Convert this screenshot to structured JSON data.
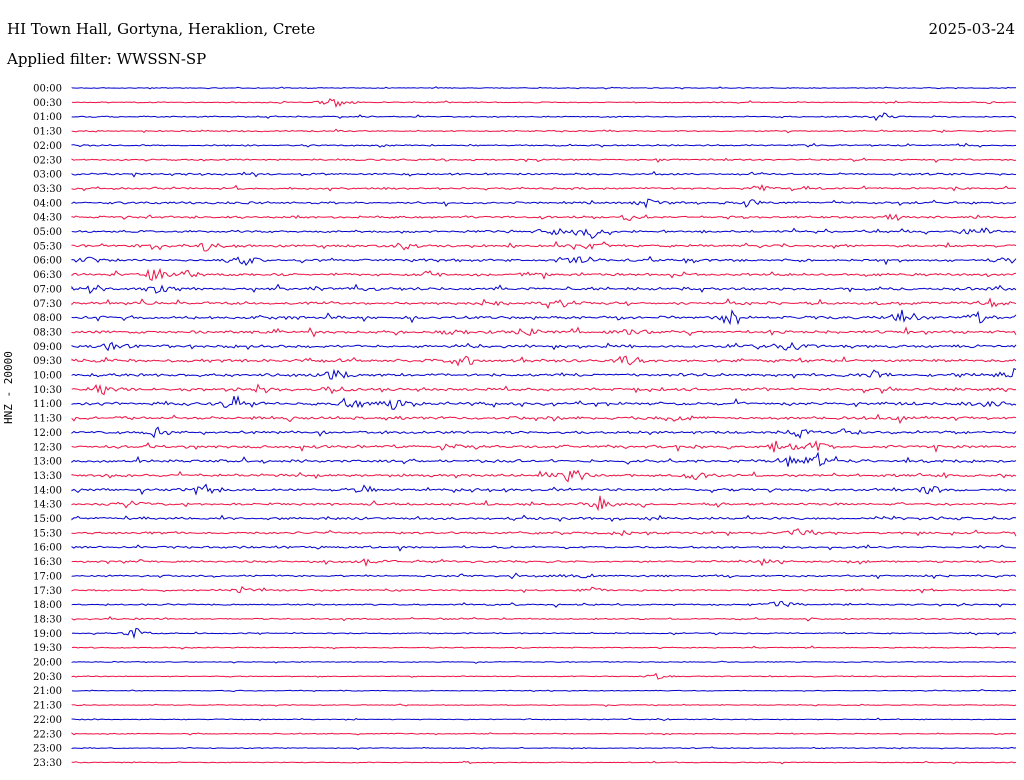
{
  "header": {
    "station": "HI Town Hall, Gortyna, Heraklion, Crete",
    "date": "2025-03-24",
    "filter": "Applied filter: WWSSN-SP",
    "channel": "HNZ - 20000"
  },
  "colors": {
    "trace_a": "#0000cc",
    "trace_b": "#ee1144"
  },
  "chart_data": {
    "type": "line",
    "title": "HI Town Hall, Gortyna, Heraklion, Crete",
    "ylabel": "HNZ - 20000",
    "series": [
      {
        "name": "00:00",
        "bursts": []
      },
      {
        "name": "00:30",
        "bursts": [
          [
            0.28,
            7
          ]
        ]
      },
      {
        "name": "01:00",
        "bursts": [
          [
            0.86,
            4
          ]
        ]
      },
      {
        "name": "01:30",
        "bursts": []
      },
      {
        "name": "02:00",
        "bursts": []
      },
      {
        "name": "02:30",
        "bursts": []
      },
      {
        "name": "03:00",
        "bursts": []
      },
      {
        "name": "03:30",
        "bursts": [
          [
            0.73,
            4
          ]
        ]
      },
      {
        "name": "04:00",
        "bursts": [
          [
            0.61,
            6
          ],
          [
            0.72,
            3
          ]
        ]
      },
      {
        "name": "04:30",
        "bursts": [
          [
            0.59,
            3
          ],
          [
            0.87,
            4
          ]
        ]
      },
      {
        "name": "05:00",
        "bursts": [
          [
            0.51,
            5
          ],
          [
            0.55,
            8
          ],
          [
            0.96,
            6
          ]
        ]
      },
      {
        "name": "05:30",
        "bursts": [
          [
            0.09,
            6
          ],
          [
            0.14,
            5
          ],
          [
            0.35,
            4
          ],
          [
            0.55,
            5
          ]
        ]
      },
      {
        "name": "06:00",
        "bursts": [
          [
            0.02,
            4
          ],
          [
            0.18,
            8
          ],
          [
            0.54,
            5
          ],
          [
            0.99,
            4
          ]
        ]
      },
      {
        "name": "06:30",
        "bursts": [
          [
            0.09,
            9
          ],
          [
            0.12,
            6
          ],
          [
            0.38,
            4
          ],
          [
            0.49,
            4
          ]
        ]
      },
      {
        "name": "07:00",
        "bursts": [
          [
            0.02,
            4
          ],
          [
            0.09,
            4
          ]
        ]
      },
      {
        "name": "07:30",
        "bursts": [
          [
            0.44,
            5
          ],
          [
            0.52,
            4
          ],
          [
            0.97,
            5
          ]
        ]
      },
      {
        "name": "08:00",
        "bursts": [
          [
            0.7,
            7
          ],
          [
            0.88,
            7
          ],
          [
            0.96,
            5
          ]
        ]
      },
      {
        "name": "08:30",
        "bursts": [
          [
            0.4,
            4
          ],
          [
            0.48,
            4
          ],
          [
            0.59,
            3
          ]
        ]
      },
      {
        "name": "09:00",
        "bursts": [
          [
            0.04,
            4
          ],
          [
            0.76,
            5
          ]
        ]
      },
      {
        "name": "09:30",
        "bursts": [
          [
            0.42,
            4
          ],
          [
            0.59,
            6
          ]
        ]
      },
      {
        "name": "10:00",
        "bursts": [
          [
            0.28,
            5
          ],
          [
            0.85,
            5
          ],
          [
            1.0,
            7
          ]
        ]
      },
      {
        "name": "10:30",
        "bursts": [
          [
            0.03,
            6
          ],
          [
            0.28,
            5
          ]
        ]
      },
      {
        "name": "11:00",
        "bursts": [
          [
            0.17,
            8
          ],
          [
            0.3,
            5
          ],
          [
            0.34,
            5
          ],
          [
            0.97,
            5
          ]
        ]
      },
      {
        "name": "11:30",
        "bursts": [
          [
            0.64,
            4
          ],
          [
            0.88,
            3
          ]
        ]
      },
      {
        "name": "12:00",
        "bursts": [
          [
            0.09,
            3
          ],
          [
            0.77,
            6
          ],
          [
            0.82,
            4
          ]
        ]
      },
      {
        "name": "12:30",
        "bursts": [
          [
            0.75,
            8
          ],
          [
            0.79,
            7
          ],
          [
            0.4,
            4
          ]
        ]
      },
      {
        "name": "13:00",
        "bursts": [
          [
            0.76,
            6
          ],
          [
            0.79,
            7
          ]
        ]
      },
      {
        "name": "13:30",
        "bursts": [
          [
            0.53,
            10
          ],
          [
            0.66,
            4
          ]
        ]
      },
      {
        "name": "14:00",
        "bursts": [
          [
            0.14,
            6
          ],
          [
            0.31,
            4
          ],
          [
            0.91,
            4
          ]
        ]
      },
      {
        "name": "14:30",
        "bursts": [
          [
            0.06,
            5
          ],
          [
            0.56,
            8
          ]
        ]
      },
      {
        "name": "15:00",
        "bursts": []
      },
      {
        "name": "15:30",
        "bursts": [
          [
            0.58,
            4
          ],
          [
            0.77,
            5
          ]
        ]
      },
      {
        "name": "16:00",
        "bursts": []
      },
      {
        "name": "16:30",
        "bursts": [
          [
            0.31,
            4
          ],
          [
            0.73,
            3
          ]
        ]
      },
      {
        "name": "17:00",
        "bursts": [
          [
            0.54,
            3
          ]
        ]
      },
      {
        "name": "17:30",
        "bursts": [
          [
            0.18,
            3
          ],
          [
            0.55,
            3
          ]
        ]
      },
      {
        "name": "18:00",
        "bursts": [
          [
            0.75,
            5
          ]
        ]
      },
      {
        "name": "18:30",
        "bursts": []
      },
      {
        "name": "19:00",
        "bursts": [
          [
            0.07,
            6
          ]
        ]
      },
      {
        "name": "19:30",
        "bursts": []
      },
      {
        "name": "20:00",
        "bursts": []
      },
      {
        "name": "20:30",
        "bursts": [
          [
            0.62,
            3
          ]
        ]
      },
      {
        "name": "21:00",
        "bursts": []
      },
      {
        "name": "21:30",
        "bursts": []
      },
      {
        "name": "22:00",
        "bursts": []
      },
      {
        "name": "22:30",
        "bursts": []
      },
      {
        "name": "23:00",
        "bursts": []
      },
      {
        "name": "23:30",
        "bursts": []
      }
    ]
  }
}
